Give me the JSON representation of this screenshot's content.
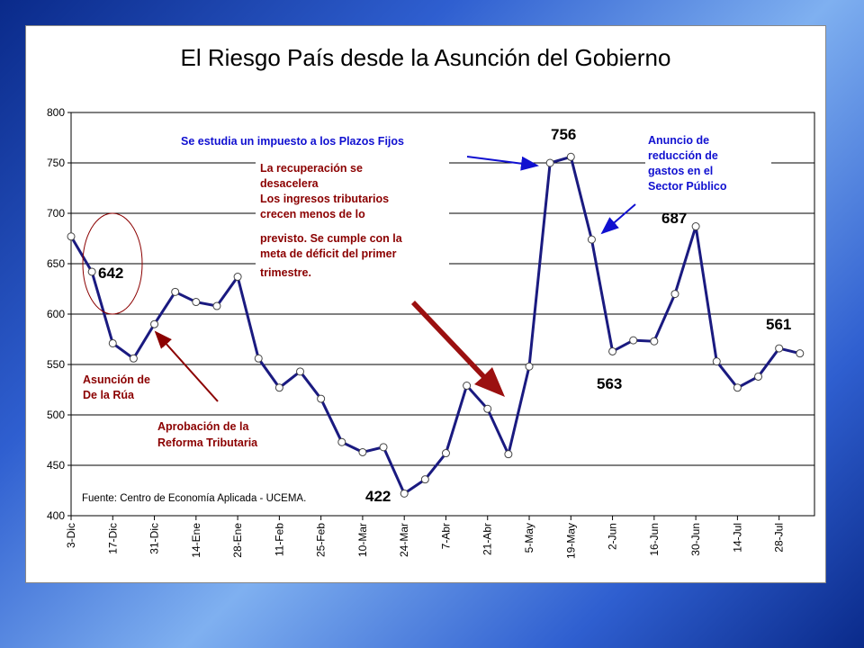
{
  "chart_data": {
    "type": "line",
    "title": "El Riesgo País desde la Asunción del Gobierno",
    "xlabel": "",
    "ylabel": "",
    "ylim": [
      400,
      800
    ],
    "yticks": [
      "400",
      "450",
      "500",
      "550",
      "600",
      "650",
      "700",
      "750",
      "800"
    ],
    "xticks": [
      "3-Dic",
      "17-Dic",
      "31-Dic",
      "14-Ene",
      "28-Ene",
      "11-Feb",
      "25-Feb",
      "10-Mar",
      "24-Mar",
      "7-Abr",
      "21-Abr",
      "5-May",
      "19-May",
      "2-Jun",
      "16-Jun",
      "30-Jun",
      "14-Jul",
      "28-Jul"
    ],
    "grid": "horizontal",
    "series": [
      {
        "color": "#1a1a80",
        "values": [
          677,
          642,
          571,
          556,
          590,
          622,
          612,
          608,
          637,
          556,
          527,
          543,
          516,
          473,
          463,
          468,
          422,
          436,
          462,
          529,
          506,
          461,
          548,
          750,
          756,
          674,
          563,
          574,
          573,
          620,
          687,
          553,
          527,
          538,
          566,
          561
        ]
      }
    ],
    "data_labels": [
      "642",
      "756",
      "687",
      "563",
      "561",
      "422"
    ],
    "annotations": {
      "plazos_fijos": "Se estudia un impuesto a los Plazos Fijos",
      "reduccion": [
        "Anuncio de",
        "reducción de",
        "gastos en el",
        "Sector Público"
      ],
      "recuperacion": [
        "La  recuperación se",
        "desacelera",
        "Los ingresos tributarios",
        "crecen menos de lo",
        "previsto. Se cumple con la",
        "meta  de déficit del primer",
        "trimestre."
      ],
      "asuncion": [
        "Asunción de",
        "De la Rúa"
      ],
      "reforma": [
        "Aprobación de la",
        "Reforma Tributaria"
      ]
    },
    "source": "Fuente: Centro de Economía Aplicada - UCEMA."
  }
}
